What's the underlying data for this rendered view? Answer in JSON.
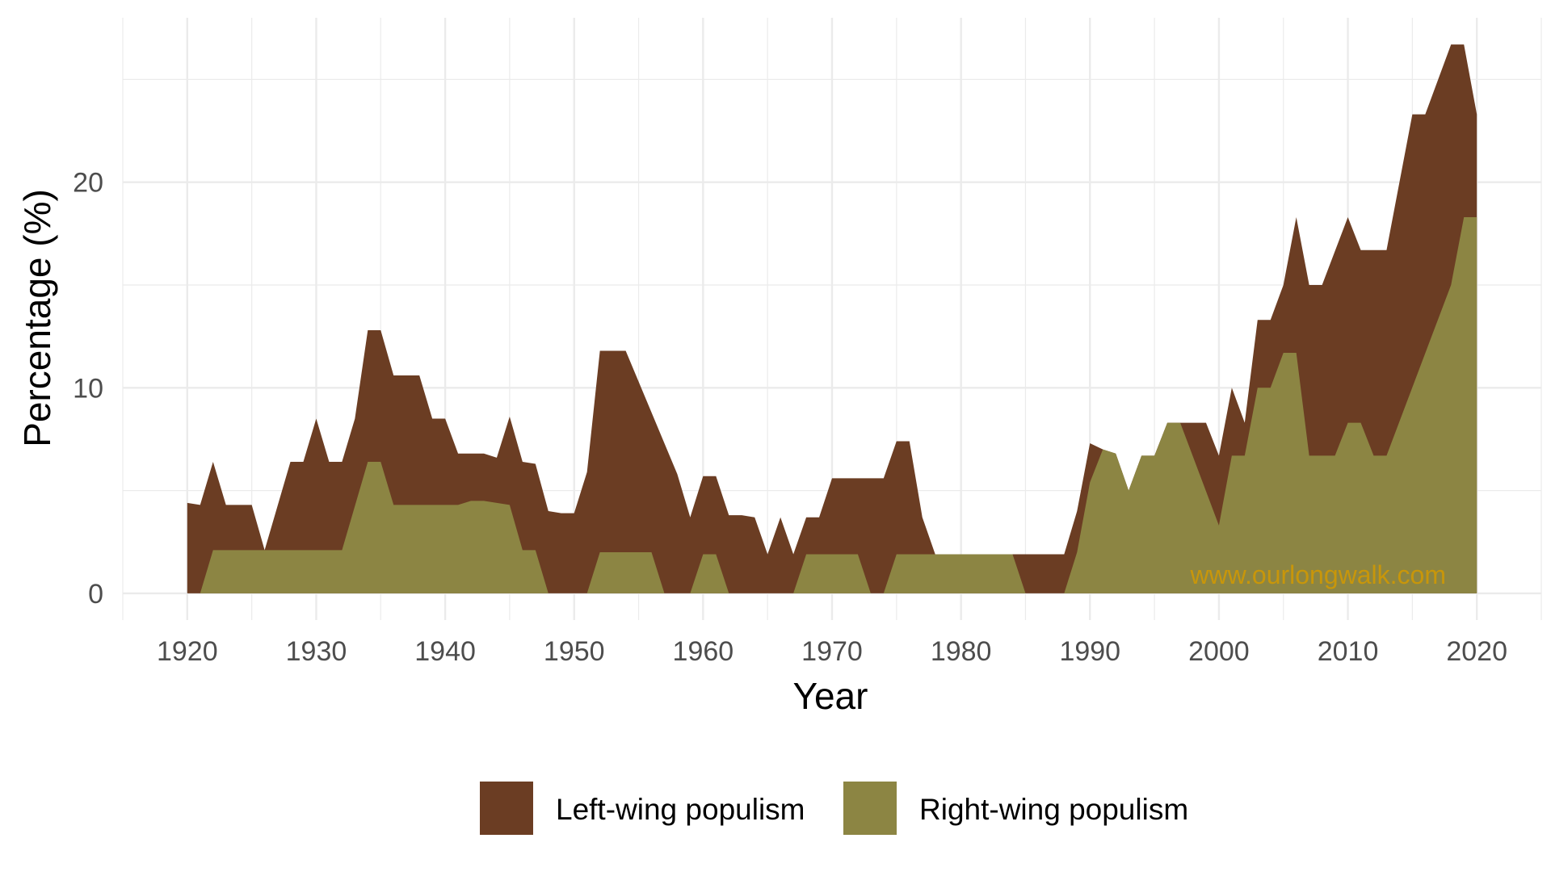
{
  "chart_data": {
    "type": "area",
    "stacked": true,
    "xlabel": "Year",
    "ylabel": "Percentage (%)",
    "xlim": [
      1915,
      2025
    ],
    "ylim": [
      -1.3,
      28
    ],
    "x_ticks": [
      1920,
      1930,
      1940,
      1950,
      1960,
      1970,
      1980,
      1990,
      2000,
      2010,
      2020
    ],
    "y_ticks": [
      0,
      10,
      20
    ],
    "grid": true,
    "legend_position": "bottom",
    "watermark": "www.ourlongwalk.com",
    "colors": {
      "Left-wing populism": "#6b3d23",
      "Right-wing populism": "#8c8543",
      "grid": "#ebebeb"
    },
    "series": [
      {
        "name": "Right-wing populism",
        "points": [
          [
            1920,
            0
          ],
          [
            1921,
            0
          ],
          [
            1922,
            2.1
          ],
          [
            1926,
            2.1
          ],
          [
            1932,
            2.1
          ],
          [
            1934,
            6.4
          ],
          [
            1935,
            6.4
          ],
          [
            1936,
            4.3
          ],
          [
            1941,
            4.3
          ],
          [
            1942,
            4.5
          ],
          [
            1943,
            4.5
          ],
          [
            1945,
            4.3
          ],
          [
            1946,
            2.1
          ],
          [
            1947,
            2.1
          ],
          [
            1948,
            0
          ],
          [
            1951,
            0
          ],
          [
            1952,
            2.0
          ],
          [
            1956,
            2.0
          ],
          [
            1957,
            0
          ],
          [
            1959,
            0
          ],
          [
            1960,
            1.9
          ],
          [
            1961,
            1.9
          ],
          [
            1962,
            0
          ],
          [
            1967,
            0
          ],
          [
            1968,
            1.9
          ],
          [
            1972,
            1.9
          ],
          [
            1973,
            0
          ],
          [
            1974,
            0
          ],
          [
            1975,
            1.9
          ],
          [
            1984,
            1.9
          ],
          [
            1985,
            0
          ],
          [
            1988,
            0
          ],
          [
            1989,
            2.0
          ],
          [
            1990,
            5.4
          ],
          [
            1991,
            7.0
          ],
          [
            1992,
            6.8
          ],
          [
            1993,
            5.0
          ],
          [
            1994,
            6.7
          ],
          [
            1995,
            6.7
          ],
          [
            1996,
            8.3
          ],
          [
            1997,
            8.3
          ],
          [
            2000,
            3.3
          ],
          [
            2001,
            6.7
          ],
          [
            2002,
            6.7
          ],
          [
            2003,
            10.0
          ],
          [
            2004,
            10.0
          ],
          [
            2005,
            11.7
          ],
          [
            2006,
            11.7
          ],
          [
            2007,
            6.7
          ],
          [
            2009,
            6.7
          ],
          [
            2010,
            8.3
          ],
          [
            2011,
            8.3
          ],
          [
            2012,
            6.7
          ],
          [
            2013,
            6.7
          ],
          [
            2018,
            15.0
          ],
          [
            2019,
            18.3
          ],
          [
            2020,
            18.3
          ]
        ]
      },
      {
        "name": "Left-wing populism",
        "points": [
          [
            1920,
            4.4
          ],
          [
            1921,
            4.3
          ],
          [
            1922,
            6.4
          ],
          [
            1923,
            4.3
          ],
          [
            1925,
            4.3
          ],
          [
            1926,
            2.1
          ],
          [
            1928,
            6.4
          ],
          [
            1929,
            6.4
          ],
          [
            1930,
            8.5
          ],
          [
            1931,
            6.4
          ],
          [
            1932,
            6.4
          ],
          [
            1933,
            8.5
          ],
          [
            1934,
            12.8
          ],
          [
            1935,
            12.8
          ],
          [
            1936,
            10.6
          ],
          [
            1938,
            10.6
          ],
          [
            1939,
            8.5
          ],
          [
            1940,
            8.5
          ],
          [
            1941,
            6.8
          ],
          [
            1943,
            6.8
          ],
          [
            1944,
            6.6
          ],
          [
            1945,
            8.6
          ],
          [
            1946,
            6.4
          ],
          [
            1947,
            6.3
          ],
          [
            1948,
            4.0
          ],
          [
            1949,
            3.9
          ],
          [
            1950,
            3.9
          ],
          [
            1951,
            5.9
          ],
          [
            1952,
            11.8
          ],
          [
            1954,
            11.8
          ],
          [
            1958,
            5.8
          ],
          [
            1959,
            3.7
          ],
          [
            1960,
            5.7
          ],
          [
            1961,
            5.7
          ],
          [
            1962,
            3.8
          ],
          [
            1963,
            3.8
          ],
          [
            1964,
            3.7
          ],
          [
            1965,
            1.9
          ],
          [
            1966,
            3.7
          ],
          [
            1967,
            1.9
          ],
          [
            1968,
            3.7
          ],
          [
            1969,
            3.7
          ],
          [
            1970,
            5.6
          ],
          [
            1974,
            5.6
          ],
          [
            1975,
            7.4
          ],
          [
            1976,
            7.4
          ],
          [
            1977,
            3.7
          ],
          [
            1978,
            1.9
          ],
          [
            1988,
            1.9
          ],
          [
            1989,
            4.0
          ],
          [
            1990,
            7.3
          ],
          [
            1991,
            7.0
          ],
          [
            1992,
            6.8
          ],
          [
            1993,
            5.0
          ],
          [
            1994,
            6.7
          ],
          [
            1995,
            6.7
          ],
          [
            1996,
            8.3
          ],
          [
            1999,
            8.3
          ],
          [
            2000,
            6.7
          ],
          [
            2001,
            10.0
          ],
          [
            2002,
            8.3
          ],
          [
            2003,
            13.3
          ],
          [
            2004,
            13.3
          ],
          [
            2005,
            15.0
          ],
          [
            2006,
            18.3
          ],
          [
            2007,
            15.0
          ],
          [
            2008,
            15.0
          ],
          [
            2010,
            18.3
          ],
          [
            2011,
            16.7
          ],
          [
            2013,
            16.7
          ],
          [
            2015,
            23.3
          ],
          [
            2016,
            23.3
          ],
          [
            2018,
            26.7
          ],
          [
            2019,
            26.7
          ],
          [
            2020,
            23.3
          ]
        ]
      }
    ]
  }
}
